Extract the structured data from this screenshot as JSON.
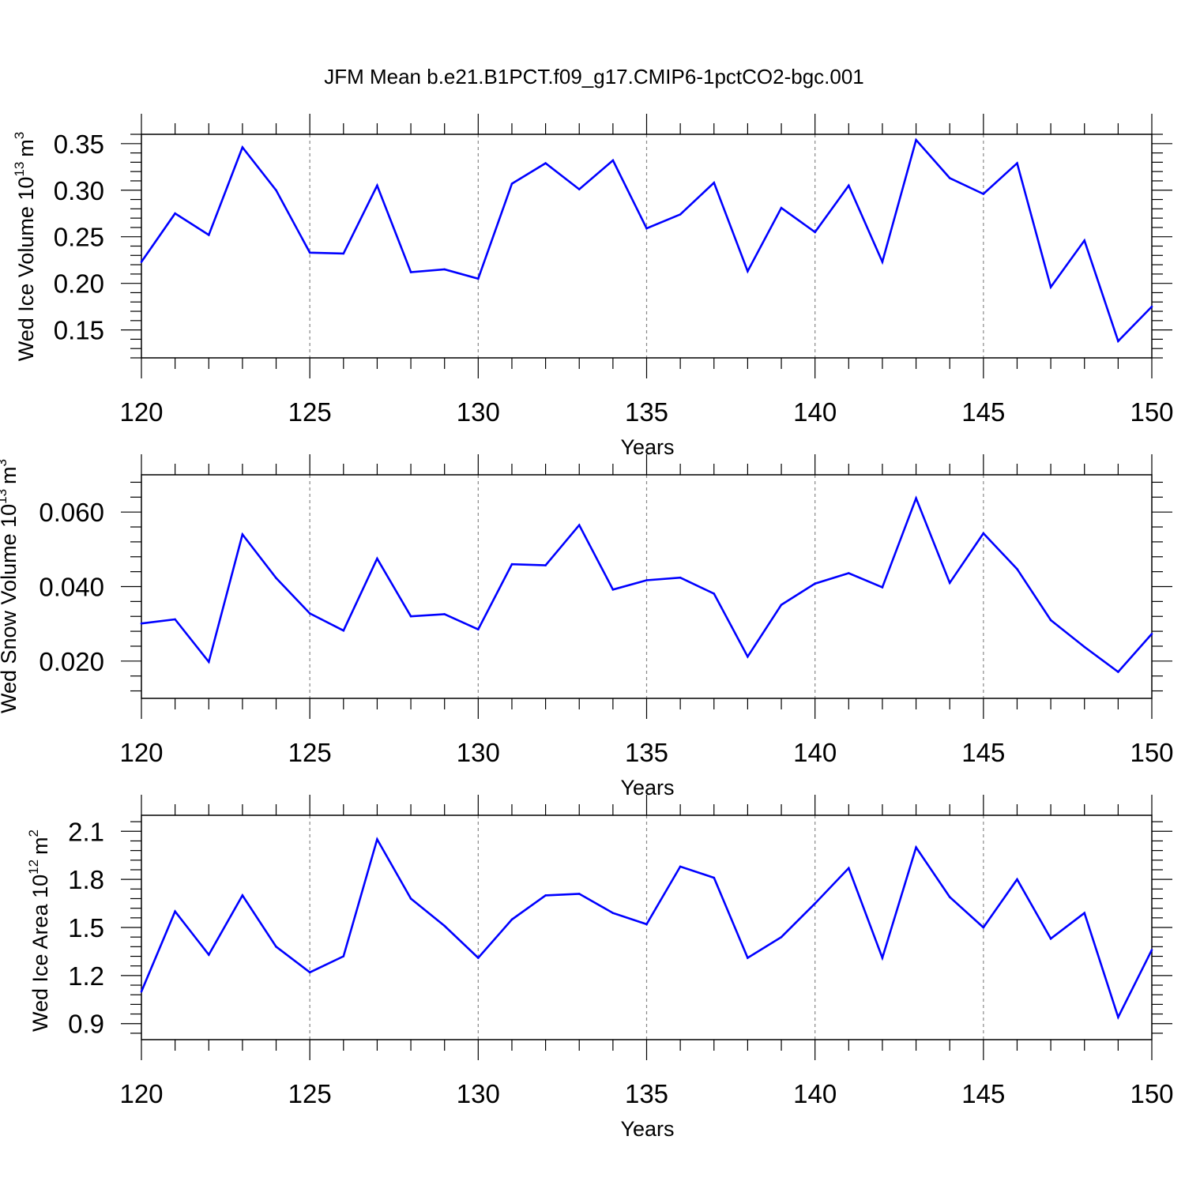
{
  "title": "JFM Mean b.e21.B1PCT.f09_g17.CMIP6-1pctCO2-bgc.001",
  "chart_data": [
    {
      "type": "line",
      "ylabel": {
        "text": "Wed Ice Volume 10",
        "exp": "13",
        "unit": "m",
        "unit_exp": "3"
      },
      "xlabel": "Years",
      "xlim": [
        120,
        150
      ],
      "ylim": [
        0.12,
        0.36
      ],
      "xticks": [
        120,
        125,
        130,
        135,
        140,
        145,
        150
      ],
      "yticks": [
        0.15,
        0.2,
        0.25,
        0.3,
        0.35
      ],
      "ytick_labels": [
        "0.15",
        "0.20",
        "0.25",
        "0.30",
        "0.35"
      ],
      "x": [
        120,
        121,
        122,
        123,
        124,
        125,
        126,
        127,
        128,
        129,
        130,
        131,
        132,
        133,
        134,
        135,
        136,
        137,
        138,
        139,
        140,
        141,
        142,
        143,
        144,
        145,
        146,
        147,
        148,
        149,
        150
      ],
      "values": [
        0.223,
        0.275,
        0.252,
        0.346,
        0.3,
        0.233,
        0.232,
        0.305,
        0.212,
        0.215,
        0.205,
        0.307,
        0.329,
        0.301,
        0.332,
        0.259,
        0.274,
        0.308,
        0.213,
        0.281,
        0.255,
        0.305,
        0.223,
        0.354,
        0.313,
        0.296,
        0.329,
        0.196,
        0.246,
        0.138,
        0.175
      ],
      "line_color": "#0000ff",
      "grid": "vertical dashed at major x ticks"
    },
    {
      "type": "line",
      "ylabel": {
        "text": "Wed Snow Volume 10",
        "exp": "13",
        "unit": "m",
        "unit_exp": "3"
      },
      "xlabel": "Years",
      "xlim": [
        120,
        150
      ],
      "ylim": [
        0.01,
        0.07
      ],
      "xticks": [
        120,
        125,
        130,
        135,
        140,
        145,
        150
      ],
      "yticks": [
        0.02,
        0.04,
        0.06
      ],
      "ytick_labels": [
        "0.020",
        "0.040",
        "0.060"
      ],
      "x": [
        120,
        121,
        122,
        123,
        124,
        125,
        126,
        127,
        128,
        129,
        130,
        131,
        132,
        133,
        134,
        135,
        136,
        137,
        138,
        139,
        140,
        141,
        142,
        143,
        144,
        145,
        146,
        147,
        148,
        149,
        150
      ],
      "values": [
        0.0301,
        0.0312,
        0.0198,
        0.054,
        0.0423,
        0.0328,
        0.0282,
        0.0475,
        0.032,
        0.0326,
        0.0285,
        0.046,
        0.0457,
        0.0565,
        0.0392,
        0.0417,
        0.0424,
        0.0381,
        0.0212,
        0.0351,
        0.0408,
        0.0436,
        0.0398,
        0.0637,
        0.041,
        0.0543,
        0.0447,
        0.031,
        0.0238,
        0.0171,
        0.0273
      ],
      "line_color": "#0000ff",
      "grid": "vertical dashed at major x ticks"
    },
    {
      "type": "line",
      "ylabel": {
        "text": "Wed Ice Area 10",
        "exp": "12",
        "unit": "m",
        "unit_exp": "2"
      },
      "xlabel": "Years",
      "xlim": [
        120,
        150
      ],
      "ylim": [
        0.8,
        2.2
      ],
      "xticks": [
        120,
        125,
        130,
        135,
        140,
        145,
        150
      ],
      "yticks": [
        0.9,
        1.2,
        1.5,
        1.8,
        2.1
      ],
      "ytick_labels": [
        "0.9",
        "1.2",
        "1.5",
        "1.8",
        "2.1"
      ],
      "x": [
        120,
        121,
        122,
        123,
        124,
        125,
        126,
        127,
        128,
        129,
        130,
        131,
        132,
        133,
        134,
        135,
        136,
        137,
        138,
        139,
        140,
        141,
        142,
        143,
        144,
        145,
        146,
        147,
        148,
        149,
        150
      ],
      "values": [
        1.1,
        1.6,
        1.33,
        1.7,
        1.38,
        1.22,
        1.32,
        2.05,
        1.68,
        1.51,
        1.31,
        1.55,
        1.7,
        1.71,
        1.59,
        1.52,
        1.88,
        1.81,
        1.31,
        1.44,
        1.65,
        1.87,
        1.31,
        2.0,
        1.69,
        1.5,
        1.8,
        1.43,
        1.59,
        0.94,
        1.36
      ],
      "line_color": "#0000ff",
      "grid": "vertical dashed at major x ticks"
    }
  ]
}
